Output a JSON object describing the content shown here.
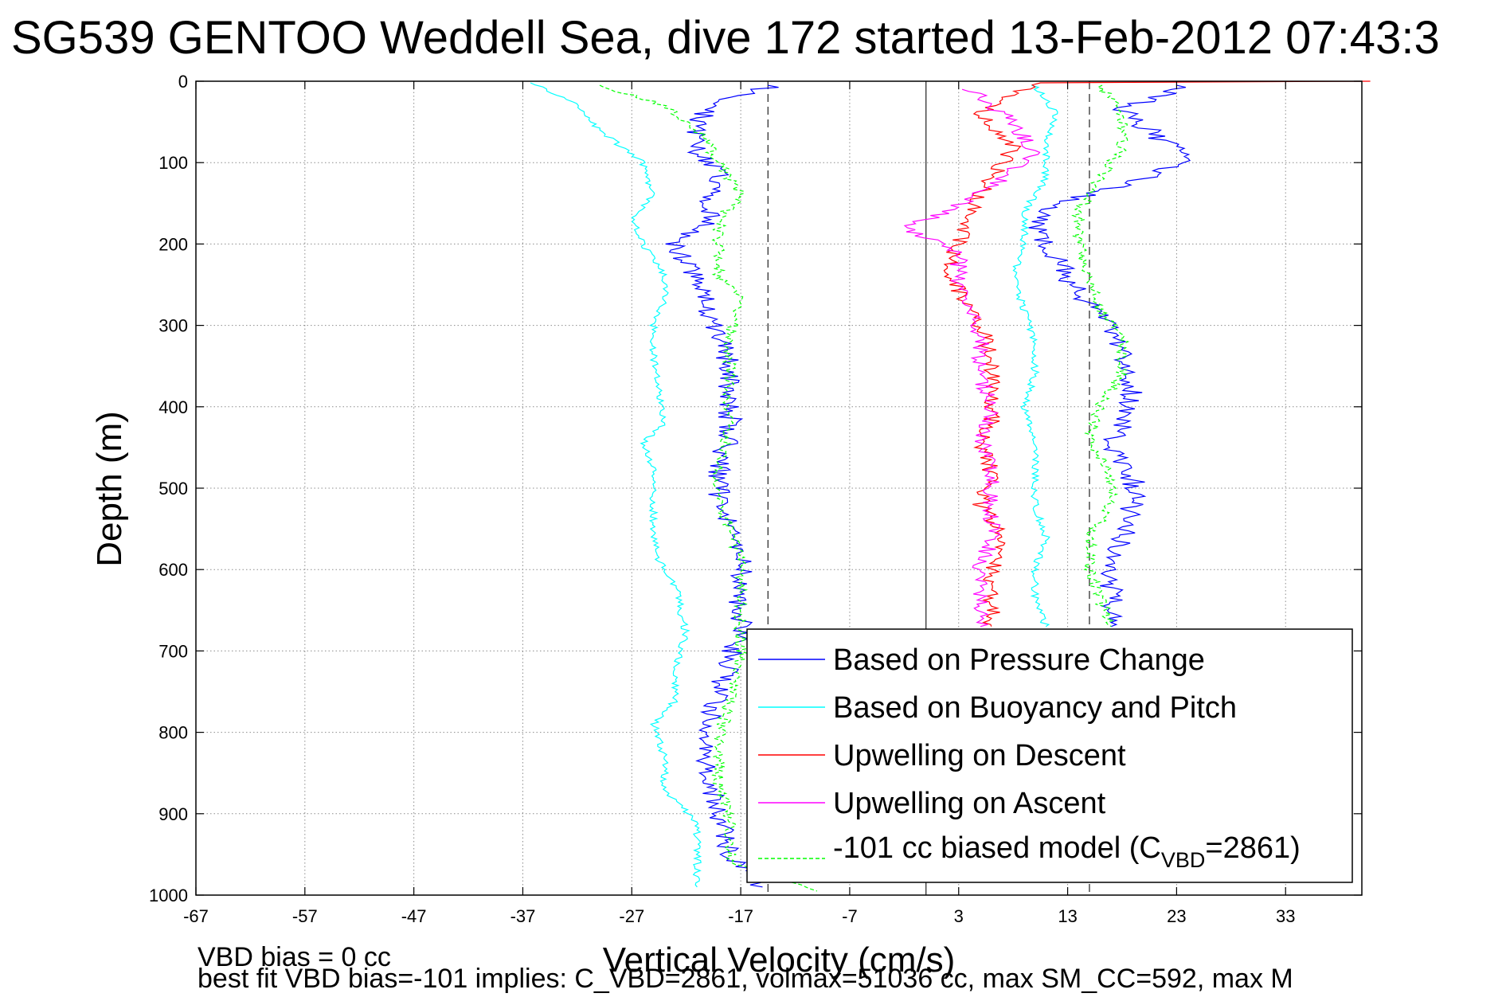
{
  "colors": {
    "pressure": "#0000ff",
    "buoyancy": "#00ffff",
    "descent": "#ff0000",
    "ascent": "#ff00ff",
    "model": "#00ff00",
    "grid": "#8c8c8c",
    "refline": "#303030"
  },
  "chart_data": {
    "type": "line",
    "title": "SG539 GENTOO Weddell Sea, dive 172 started 13-Feb-2012 07:43:3",
    "xlabel": "Vertical Velocity (cm/s)",
    "ylabel": "Depth (m)",
    "xlim": [
      -67,
      40
    ],
    "ylim": [
      0,
      1000
    ],
    "y_reversed": true,
    "grid": true,
    "legend_position": "bottom-right",
    "x_ticks": [
      -67,
      -57,
      -47,
      -37,
      -27,
      -17,
      -7,
      3,
      13,
      23,
      33
    ],
    "x_tick_labels": [
      "-67",
      "-57",
      "-47",
      "-37",
      "-27",
      "-17",
      "-7",
      "3",
      "13",
      "23",
      "33"
    ],
    "y_ticks": [
      0,
      100,
      200,
      300,
      400,
      500,
      600,
      700,
      800,
      900,
      1000
    ],
    "y_tick_labels": [
      "0",
      "100",
      "200",
      "300",
      "400",
      "500",
      "600",
      "700",
      "800",
      "900",
      "1000"
    ],
    "reference_lines": [
      {
        "x": 0,
        "style": "solid"
      },
      {
        "x": -14.5,
        "style": "dashed"
      },
      {
        "x": 15,
        "style": "dashed"
      }
    ],
    "series": [
      {
        "name": "Based on Pressure Change",
        "color_key": "pressure",
        "style": "solid",
        "points": [
          [
            [
              -14,
              5
            ],
            [
              -20,
              30
            ],
            [
              -21,
              55
            ],
            [
              -21,
              85
            ],
            [
              -19,
              110
            ],
            [
              -20,
              140
            ],
            [
              -20,
              170
            ],
            [
              -23,
              200
            ],
            [
              -21,
              240
            ],
            [
              -20,
              275
            ],
            [
              -19,
              310
            ],
            [
              -18,
              350
            ],
            [
              -18,
              390
            ],
            [
              -18,
              430
            ],
            [
              -19,
              470
            ],
            [
              -19,
              510
            ],
            [
              -18,
              550
            ],
            [
              -17,
              590
            ],
            [
              -17,
              630
            ],
            [
              -17,
              670
            ],
            [
              -18,
              710
            ],
            [
              -19,
              750
            ],
            [
              -20,
              800
            ],
            [
              -20,
              850
            ],
            [
              -19,
              900
            ],
            [
              -18,
              950
            ],
            [
              -15,
              990
            ]
          ],
          [
            [
              24,
              5
            ],
            [
              18,
              35
            ],
            [
              21,
              65
            ],
            [
              24,
              95
            ],
            [
              20,
              120
            ],
            [
              12,
              150
            ],
            [
              10,
              180
            ],
            [
              12,
              220
            ],
            [
              14,
              260
            ],
            [
              17,
              300
            ],
            [
              18,
              340
            ],
            [
              19,
              380
            ],
            [
              18,
              420
            ],
            [
              17,
              450
            ],
            [
              19,
              490
            ],
            [
              19,
              520
            ],
            [
              18,
              560
            ],
            [
              17,
              600
            ],
            [
              17,
              640
            ],
            [
              17,
              670
            ]
          ]
        ]
      },
      {
        "name": "Based on Buoyancy and Pitch",
        "color_key": "buoyancy",
        "style": "solid",
        "points": [
          [
            [
              -36,
              2
            ],
            [
              -32,
              30
            ],
            [
              -30,
              60
            ],
            [
              -26,
              100
            ],
            [
              -25,
              140
            ],
            [
              -27,
              170
            ],
            [
              -26,
              200
            ],
            [
              -24,
              240
            ],
            [
              -24,
              270
            ],
            [
              -25,
              300
            ],
            [
              -25,
              340
            ],
            [
              -24.5,
              380
            ],
            [
              -24,
              420
            ],
            [
              -26,
              445
            ],
            [
              -25,
              480
            ],
            [
              -25,
              520
            ],
            [
              -25,
              560
            ],
            [
              -24.5,
              590
            ],
            [
              -23,
              620
            ],
            [
              -22.5,
              650
            ],
            [
              -22,
              680
            ],
            [
              -23,
              720
            ],
            [
              -23,
              760
            ],
            [
              -25,
              790
            ],
            [
              -24,
              830
            ],
            [
              -24,
              870
            ],
            [
              -21,
              910
            ],
            [
              -21,
              950
            ],
            [
              -21,
              990
            ]
          ],
          [
            [
              10,
              5
            ],
            [
              12,
              40
            ],
            [
              11,
              80
            ],
            [
              11,
              120
            ],
            [
              9,
              160
            ],
            [
              9,
              200
            ],
            [
              8,
              240
            ],
            [
              9,
              280
            ],
            [
              10,
              320
            ],
            [
              10,
              360
            ],
            [
              9,
              400
            ],
            [
              10,
              440
            ],
            [
              10,
              480
            ],
            [
              10,
              520
            ],
            [
              11,
              560
            ],
            [
              10,
              600
            ],
            [
              10,
              640
            ],
            [
              11,
              670
            ]
          ]
        ]
      },
      {
        "name": "Upwelling on Descent",
        "color_key": "descent",
        "style": "solid",
        "points": [
          [
            [
              40,
              0
            ],
            [
              10,
              2
            ],
            [
              5,
              40
            ],
            [
              8,
              80
            ],
            [
              6,
              120
            ],
            [
              4,
              160
            ],
            [
              3,
              200
            ],
            [
              2,
              220
            ],
            [
              3,
              260
            ],
            [
              5,
              300
            ],
            [
              6,
              340
            ],
            [
              6,
              380
            ],
            [
              6,
              420
            ],
            [
              5,
              440
            ],
            [
              6,
              480
            ],
            [
              5,
              520
            ],
            [
              7,
              560
            ],
            [
              6,
              600
            ],
            [
              6,
              640
            ],
            [
              6,
              670
            ]
          ]
        ]
      },
      {
        "name": "Upwelling on Ascent",
        "color_key": "ascent",
        "style": "solid",
        "points": [
          [
            [
              4,
              10
            ],
            [
              8,
              50
            ],
            [
              10,
              90
            ],
            [
              6,
              130
            ],
            [
              2,
              160
            ],
            [
              -2,
              180
            ],
            [
              3,
              210
            ],
            [
              3,
              250
            ],
            [
              4,
              280
            ],
            [
              5,
              320
            ],
            [
              5,
              360
            ],
            [
              6,
              400
            ],
            [
              5,
              440
            ],
            [
              6,
              480
            ],
            [
              6,
              520
            ],
            [
              6,
              560
            ],
            [
              5,
              600
            ],
            [
              5,
              640
            ],
            [
              5,
              670
            ]
          ]
        ]
      },
      {
        "name": "-101 cc biased model (C_VBD=2861)",
        "color_key": "model",
        "style": "dashed",
        "points": [
          [
            [
              -30,
              5
            ],
            [
              -24,
              30
            ],
            [
              -21,
              60
            ],
            [
              -19,
              100
            ],
            [
              -17,
              140
            ],
            [
              -19,
              170
            ],
            [
              -19,
              200
            ],
            [
              -19,
              240
            ],
            [
              -17,
              270
            ],
            [
              -18,
              310
            ],
            [
              -18,
              350
            ],
            [
              -18,
              390
            ],
            [
              -18,
              430
            ],
            [
              -19,
              470
            ],
            [
              -19,
              510
            ],
            [
              -18,
              550
            ],
            [
              -17,
              590
            ],
            [
              -17,
              630
            ],
            [
              -17,
              670
            ],
            [
              -17,
              710
            ],
            [
              -18,
              760
            ],
            [
              -19,
              810
            ],
            [
              -19,
              860
            ],
            [
              -18,
              910
            ],
            [
              -18,
              960
            ],
            [
              -10,
              995
            ]
          ],
          [
            [
              16,
              5
            ],
            [
              18,
              40
            ],
            [
              18,
              80
            ],
            [
              16,
              120
            ],
            [
              14,
              160
            ],
            [
              14,
              200
            ],
            [
              15,
              240
            ],
            [
              16,
              280
            ],
            [
              18,
              320
            ],
            [
              18,
              360
            ],
            [
              16,
              400
            ],
            [
              15,
              440
            ],
            [
              17,
              480
            ],
            [
              17,
              520
            ],
            [
              15,
              560
            ],
            [
              15,
              600
            ],
            [
              16,
              640
            ],
            [
              17,
              670
            ]
          ]
        ]
      }
    ],
    "legend": {
      "entries": [
        {
          "label": "Based on Pressure Change",
          "color_key": "pressure",
          "style": "solid"
        },
        {
          "label": "Based on Buoyancy and Pitch",
          "color_key": "buoyancy",
          "style": "solid"
        },
        {
          "label": "Upwelling on Descent",
          "color_key": "descent",
          "style": "solid"
        },
        {
          "label": "Upwelling on Ascent",
          "color_key": "ascent",
          "style": "solid"
        }
      ],
      "model_entry": {
        "prefix": "-101 cc biased model (C",
        "subscript": "VBD",
        "suffix": "=2861)",
        "color_key": "model",
        "style": "dashed"
      }
    }
  },
  "footer": {
    "line1": "VBD bias = 0 cc",
    "line2": "best fit VBD bias=-101 implies: C_VBD=2861, volmax=51036 cc, max SM_CC=592, max M"
  }
}
